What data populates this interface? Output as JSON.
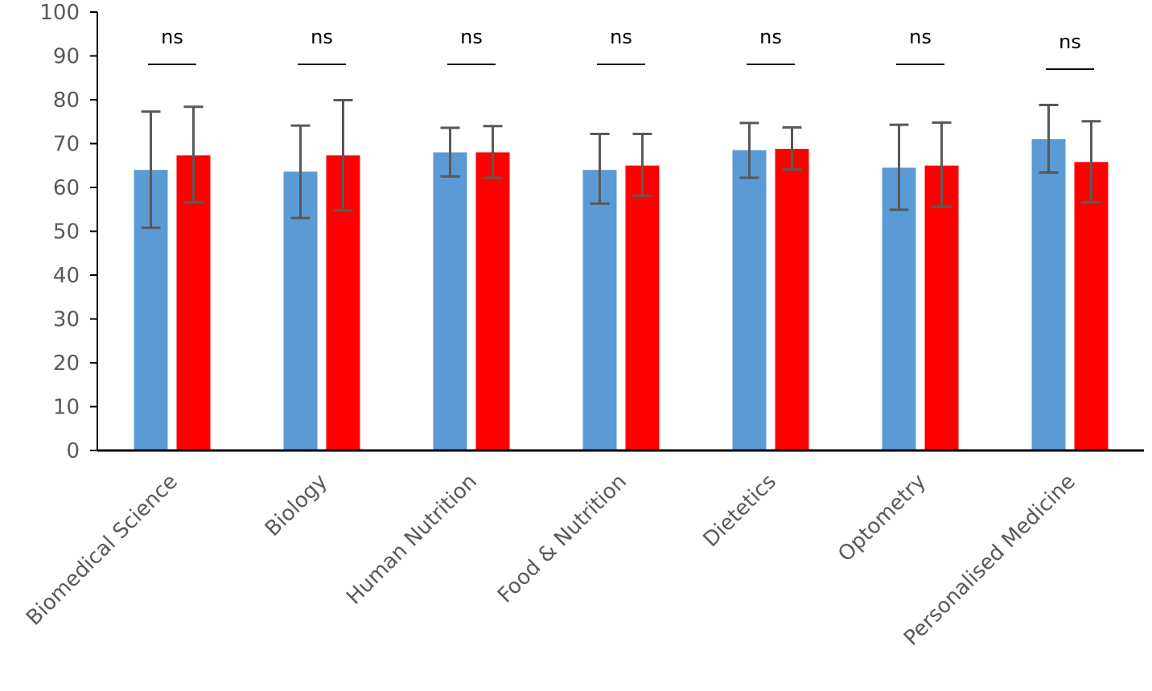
{
  "chart_data": {
    "type": "bar",
    "categories": [
      "Biomedical Science",
      "Biology",
      "Human Nutrition",
      "Food & Nutrition",
      "Dietetics",
      "Optometry",
      "Personalised Medicine"
    ],
    "series": [
      {
        "color": "#5b9bd5",
        "values": [
          64.0,
          63.6,
          68.0,
          64.0,
          68.5,
          64.5,
          71.0
        ],
        "error_low": [
          50.8,
          53.0,
          62.5,
          56.3,
          62.2,
          54.9,
          63.4
        ],
        "error_high": [
          77.3,
          74.1,
          73.6,
          72.2,
          74.7,
          74.3,
          78.8
        ]
      },
      {
        "color": "#ff0000",
        "values": [
          67.3,
          67.3,
          68.0,
          65.0,
          68.8,
          65.0,
          65.8
        ],
        "error_low": [
          56.6,
          54.8,
          62.2,
          58.1,
          64.1,
          55.6,
          56.6
        ],
        "error_high": [
          78.4,
          79.9,
          74.0,
          72.2,
          73.7,
          74.8,
          75.1
        ]
      }
    ],
    "annotations": [
      "ns",
      "ns",
      "ns",
      "ns",
      "ns",
      "ns",
      "ns"
    ],
    "yticks": [
      "0",
      "10",
      "20",
      "30",
      "40",
      "50",
      "60",
      "70",
      "80",
      "90",
      "100"
    ],
    "ylim": [
      0,
      100
    ],
    "title": "",
    "xlabel": "",
    "ylabel": "",
    "grid": false,
    "legend": "none",
    "error_bar_color": "#595959",
    "axis_color": "#000000"
  }
}
